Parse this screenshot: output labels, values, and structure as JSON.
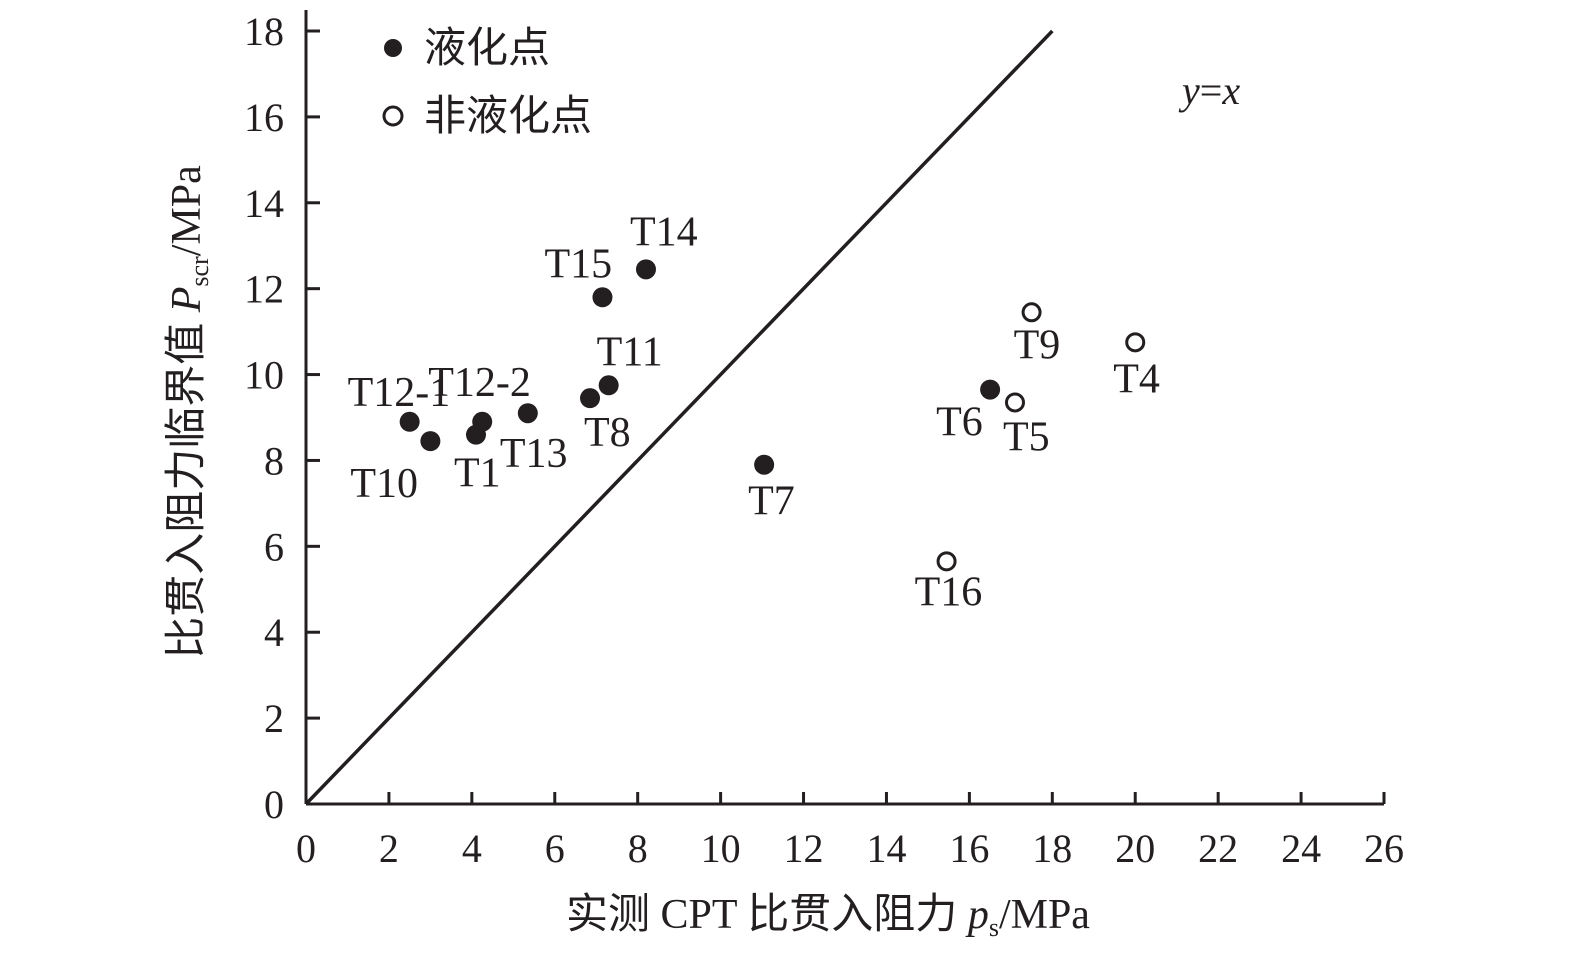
{
  "chart_data": {
    "type": "scatter",
    "xlabel": {
      "prefix": "实测 CPT 比贯入阻力 ",
      "var": "p",
      "sub": "s",
      "unit": "/MPa"
    },
    "ylabel": {
      "prefix": "比贯入阻力临界值 ",
      "var": "P",
      "sub": "scr",
      "unit": "/MPa"
    },
    "xlim": [
      0,
      26
    ],
    "ylim": [
      0,
      18
    ],
    "xticks": [
      0,
      2,
      4,
      6,
      8,
      10,
      12,
      14,
      16,
      18,
      20,
      22,
      24,
      26
    ],
    "yticks": [
      0,
      2,
      4,
      6,
      8,
      10,
      12,
      14,
      16,
      18
    ],
    "grid": false,
    "legend_position": "top-left",
    "reference_line": {
      "label_y": "y",
      "label_eq": "=",
      "label_x": "x",
      "from": [
        0,
        0
      ],
      "to": [
        18,
        18
      ]
    },
    "series": [
      {
        "name": "液化点",
        "marker": "filled-circle",
        "points": [
          {
            "label": "T12-1",
            "x": 2.5,
            "y": 8.9
          },
          {
            "label": "T10",
            "x": 3.0,
            "y": 8.45
          },
          {
            "label": "T1",
            "x": 4.1,
            "y": 8.6
          },
          {
            "label": "T12-2",
            "x": 4.25,
            "y": 8.9
          },
          {
            "label": "T13",
            "x": 5.35,
            "y": 9.1
          },
          {
            "label": "T8",
            "x": 6.85,
            "y": 9.45
          },
          {
            "label": "T11",
            "x": 7.3,
            "y": 9.75
          },
          {
            "label": "T15",
            "x": 7.15,
            "y": 11.8
          },
          {
            "label": "T14",
            "x": 8.2,
            "y": 12.45
          },
          {
            "label": "T7",
            "x": 11.05,
            "y": 7.9
          },
          {
            "label": "T6",
            "x": 16.5,
            "y": 9.65
          }
        ]
      },
      {
        "name": "非液化点",
        "marker": "open-circle",
        "points": [
          {
            "label": "T9",
            "x": 17.5,
            "y": 11.45
          },
          {
            "label": "T4",
            "x": 20.0,
            "y": 10.75
          },
          {
            "label": "T5",
            "x": 17.1,
            "y": 9.35
          },
          {
            "label": "T16",
            "x": 15.45,
            "y": 5.65
          }
        ]
      }
    ]
  }
}
